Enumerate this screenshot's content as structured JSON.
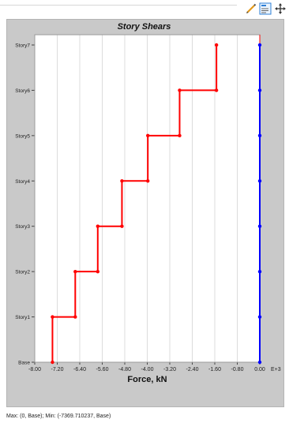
{
  "toolbar": {
    "icons": [
      "pencil-icon",
      "chart-properties-icon",
      "pan-move-icon"
    ]
  },
  "status_text": "Max: (0, Base);  Min: (-7369.710237, Base)",
  "colors": {
    "frame_bg": "#c9c9c9",
    "plot_bg": "#ffffff",
    "grid": "#dcdcdc",
    "series_red": "#ff0000",
    "series_blue": "#0000ff"
  },
  "chart_data": {
    "type": "line",
    "title": "Story Shears",
    "xlabel": "Force, kN",
    "x_scale_label": "E+3",
    "xlim": [
      -8.0,
      0.0
    ],
    "x_ticks": [
      -8.0,
      -7.2,
      -6.4,
      -5.6,
      -4.8,
      -4.0,
      -3.2,
      -2.4,
      -1.6,
      -0.8,
      0.0
    ],
    "x_tick_labels": [
      "-8.00",
      "-7.20",
      "-6.40",
      "-5.60",
      "-4.80",
      "-4.00",
      "-3.20",
      "-2.40",
      "-1.60",
      "-0.80",
      "0.00"
    ],
    "y_categories": [
      "Base",
      "Story1",
      "Story2",
      "Story3",
      "Story4",
      "Story5",
      "Story6",
      "Story7"
    ],
    "grid": true,
    "series": [
      {
        "color": "#ff0000",
        "points": [
          {
            "x": -7.37,
            "level": 0
          },
          {
            "x": -7.37,
            "level": 1
          },
          {
            "x": -6.56,
            "level": 1
          },
          {
            "x": -6.56,
            "level": 2
          },
          {
            "x": -5.76,
            "level": 2
          },
          {
            "x": -5.76,
            "level": 3
          },
          {
            "x": -4.9,
            "level": 3
          },
          {
            "x": -4.9,
            "level": 4
          },
          {
            "x": -3.98,
            "level": 4
          },
          {
            "x": -3.98,
            "level": 5
          },
          {
            "x": -2.85,
            "level": 5
          },
          {
            "x": -2.85,
            "level": 6
          },
          {
            "x": -1.54,
            "level": 6
          },
          {
            "x": -1.54,
            "level": 7
          }
        ]
      },
      {
        "color": "#0000ff",
        "points": [
          {
            "x": 0.0,
            "level": 0
          },
          {
            "x": 0.0,
            "level": 1
          },
          {
            "x": 0.0,
            "level": 2
          },
          {
            "x": 0.0,
            "level": 3
          },
          {
            "x": 0.0,
            "level": 4
          },
          {
            "x": 0.0,
            "level": 5
          },
          {
            "x": 0.0,
            "level": 6
          },
          {
            "x": 0.0,
            "level": 7
          }
        ]
      }
    ]
  }
}
